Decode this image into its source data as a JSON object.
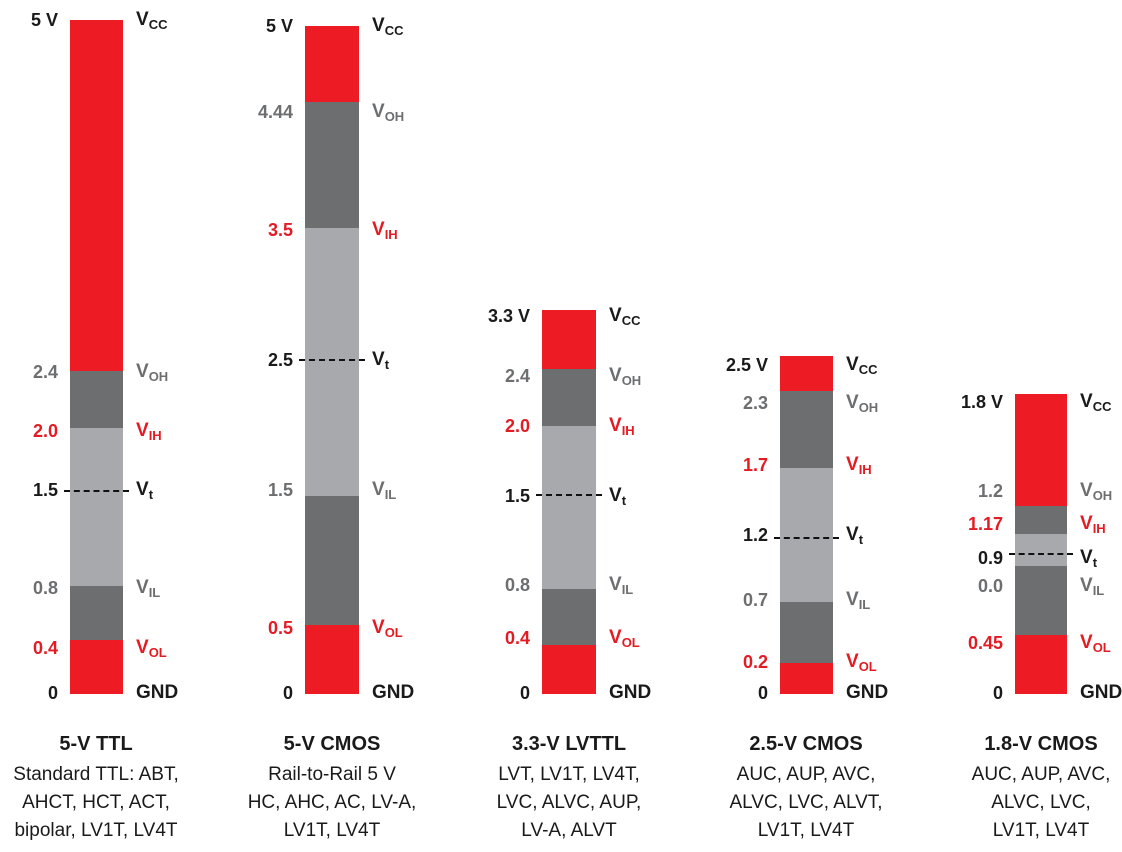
{
  "colors": {
    "red": "#ed1c24",
    "dark": "#6d6e70",
    "light": "#a7a9ac"
  },
  "columns": [
    {
      "title": "5-V TTL",
      "desc": [
        "Standard TTL: ABT,",
        "AHCT, HCT, ACT,",
        "bipolar, LV1T, LV4T"
      ],
      "vcc": "5 V",
      "gnd_v": "0",
      "gnd_sym": "GND",
      "levels": [
        {
          "v": "2.4",
          "sym": "V",
          "sub": "OH",
          "cls": "gray"
        },
        {
          "v": "2.0",
          "sym": "V",
          "sub": "IH",
          "cls": "red"
        },
        {
          "v": "1.5",
          "sym": "V",
          "sub": "t",
          "cls": "black"
        },
        {
          "v": "0.8",
          "sym": "V",
          "sub": "IL",
          "cls": "gray"
        },
        {
          "v": "0.4",
          "sym": "V",
          "sub": "OL",
          "cls": "red"
        }
      ]
    },
    {
      "title": "5-V CMOS",
      "desc": [
        "Rail-to-Rail 5 V",
        "HC, AHC, AC, LV-A,",
        "LV1T, LV4T"
      ],
      "vcc": "5 V",
      "gnd_v": "0",
      "gnd_sym": "GND",
      "levels": [
        {
          "v": "4.44",
          "sym": "V",
          "sub": "OH",
          "cls": "gray"
        },
        {
          "v": "3.5",
          "sym": "V",
          "sub": "IH",
          "cls": "red"
        },
        {
          "v": "2.5",
          "sym": "V",
          "sub": "t",
          "cls": "black"
        },
        {
          "v": "1.5",
          "sym": "V",
          "sub": "IL",
          "cls": "gray"
        },
        {
          "v": "0.5",
          "sym": "V",
          "sub": "OL",
          "cls": "red"
        }
      ]
    },
    {
      "title": "3.3-V LVTTL",
      "desc": [
        "LVT, LV1T, LV4T,",
        "LVC, ALVC, AUP,",
        "LV-A, ALVT"
      ],
      "vcc": "3.3 V",
      "gnd_v": "0",
      "gnd_sym": "GND",
      "levels": [
        {
          "v": "2.4",
          "sym": "V",
          "sub": "OH",
          "cls": "gray"
        },
        {
          "v": "2.0",
          "sym": "V",
          "sub": "IH",
          "cls": "red"
        },
        {
          "v": "1.5",
          "sym": "V",
          "sub": "t",
          "cls": "black"
        },
        {
          "v": "0.8",
          "sym": "V",
          "sub": "IL",
          "cls": "gray"
        },
        {
          "v": "0.4",
          "sym": "V",
          "sub": "OL",
          "cls": "red"
        }
      ]
    },
    {
      "title": "2.5-V CMOS",
      "desc": [
        "AUC, AUP, AVC,",
        "ALVC, LVC, ALVT,",
        "LV1T, LV4T"
      ],
      "vcc": "2.5 V",
      "gnd_v": "0",
      "gnd_sym": "GND",
      "levels": [
        {
          "v": "2.3",
          "sym": "V",
          "sub": "OH",
          "cls": "gray"
        },
        {
          "v": "1.7",
          "sym": "V",
          "sub": "IH",
          "cls": "red"
        },
        {
          "v": "1.2",
          "sym": "V",
          "sub": "t",
          "cls": "black"
        },
        {
          "v": "0.7",
          "sym": "V",
          "sub": "IL",
          "cls": "gray"
        },
        {
          "v": "0.2",
          "sym": "V",
          "sub": "OL",
          "cls": "red"
        }
      ]
    },
    {
      "title": "1.8-V CMOS",
      "desc": [
        "AUC, AUP, AVC,",
        "ALVC, LVC,",
        "LV1T, LV4T"
      ],
      "vcc": "1.8 V",
      "gnd_v": "0",
      "gnd_sym": "GND",
      "levels": [
        {
          "v": "1.2",
          "sym": "V",
          "sub": "OH",
          "cls": "gray"
        },
        {
          "v": "1.17",
          "sym": "V",
          "sub": "IH",
          "cls": "red"
        },
        {
          "v": "0.9",
          "sym": "V",
          "sub": "t",
          "cls": "black"
        },
        {
          "v": "0.0",
          "sym": "V",
          "sub": "IL",
          "cls": "gray"
        },
        {
          "v": "0.45",
          "sym": "V",
          "sub": "OL",
          "cls": "red"
        }
      ]
    }
  ],
  "vcc_sym": "V",
  "vcc_sub": "CC"
}
